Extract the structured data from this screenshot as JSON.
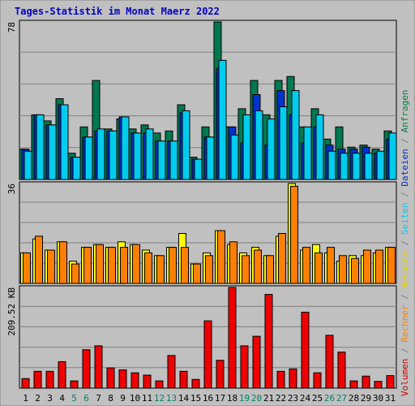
{
  "chart_data": {
    "type": "bar",
    "title": "Tages-Statistik im Monat Maerz 2022",
    "categories": [
      "1",
      "2",
      "3",
      "4",
      "5",
      "6",
      "7",
      "8",
      "9",
      "10",
      "11",
      "12",
      "13",
      "14",
      "15",
      "16",
      "17",
      "18",
      "19",
      "20",
      "21",
      "22",
      "23",
      "24",
      "25",
      "26",
      "27",
      "28",
      "29",
      "30",
      "31"
    ],
    "weekend_days": [
      "5",
      "6",
      "12",
      "13",
      "19",
      "20",
      "26",
      "27"
    ],
    "right_label": [
      {
        "text": "Volumen",
        "color": "#cc0000"
      },
      {
        "text": " / ",
        "color": "#808080"
      },
      {
        "text": "Rechner",
        "color": "#ff8000"
      },
      {
        "text": " / ",
        "color": "#808080"
      },
      {
        "text": "Besuche",
        "color": "#e8d000"
      },
      {
        "text": " / ",
        "color": "#808080"
      },
      {
        "text": "Seiten",
        "color": "#00ccee"
      },
      {
        "text": " / ",
        "color": "#808080"
      },
      {
        "text": "Dateien",
        "color": "#0030cc"
      },
      {
        "text": " / ",
        "color": "#808080"
      },
      {
        "text": "Anfragen",
        "color": "#008040"
      }
    ],
    "panels": [
      {
        "axis_label": "78",
        "ymax": 78,
        "series": [
          {
            "name": "Anfragen",
            "color": "#007850",
            "values": [
              15,
              32,
              29,
              40,
              13,
              26,
              49,
              25,
              30,
              25,
              27,
              23,
              24,
              37,
              11,
              26,
              78,
              26,
              35,
              49,
              32,
              49,
              51,
              26,
              35,
              20,
              26,
              16,
              17,
              15,
              24
            ]
          },
          {
            "name": "Dateien",
            "color": "#0032cc",
            "values": [
              15,
              32,
              27,
              37,
              11,
              21,
              24,
              24,
              31,
              23,
              23,
              19,
              19,
              33,
              10,
              21,
              55,
              26,
              18,
              42,
              17,
              44,
              32,
              18,
              26,
              17,
              15,
              15,
              16,
              13,
              20
            ]
          },
          {
            "name": "Seiten",
            "color": "#00ccee",
            "values": [
              14,
              32,
              27,
              37,
              11,
              21,
              25,
              24,
              31,
              23,
              25,
              19,
              19,
              34,
              10,
              21,
              59,
              22,
              32,
              34,
              30,
              36,
              44,
              26,
              32,
              14,
              13,
              13,
              13,
              14,
              23
            ]
          }
        ]
      },
      {
        "axis_label": "36",
        "ymax": 36,
        "series": [
          {
            "name": "Besuche",
            "color": "#ffff00",
            "values": [
              11,
              16,
              12,
              15,
              8,
              13,
              14,
              13,
              15,
              14,
              12,
              10,
              13,
              18,
              7,
              11,
              19,
              14,
              11,
              13,
              10,
              17,
              36,
              12,
              14,
              11,
              8,
              10,
              10,
              11,
              13
            ]
          },
          {
            "name": "Rechner",
            "color": "#ff8000",
            "values": [
              11,
              17,
              12,
              15,
              7,
              13,
              14,
              13,
              13,
              14,
              11,
              10,
              13,
              13,
              7,
              10,
              19,
              15,
              10,
              12,
              10,
              18,
              35,
              13,
              11,
              13,
              10,
              9,
              12,
              12,
              13
            ]
          }
        ]
      },
      {
        "axis_label": "209.52 KB",
        "ymax": 209.52,
        "series": [
          {
            "name": "Volumen",
            "color": "#ee0000",
            "values": [
              20,
              35,
              35,
              55,
              15,
              80,
              88,
              42,
              38,
              32,
              27,
              15,
              68,
              35,
              18,
              140,
              58,
              209.52,
              88,
              108,
              195,
              35,
              40,
              158,
              32,
              110,
              75,
              15,
              25,
              14,
              26
            ]
          }
        ]
      }
    ]
  }
}
